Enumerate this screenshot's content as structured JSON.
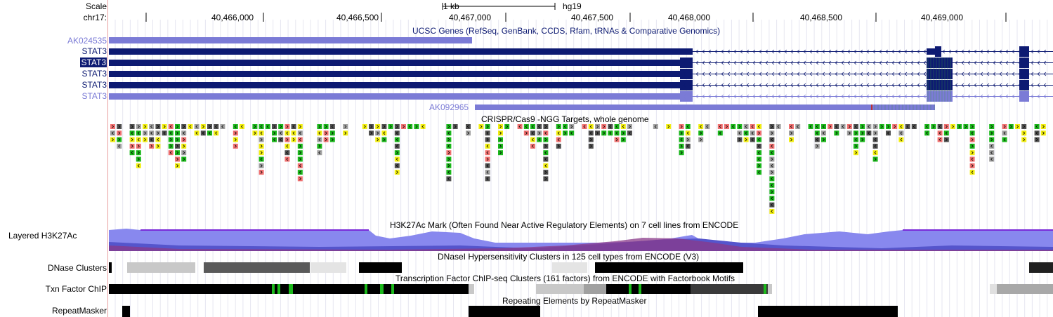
{
  "ruler": {
    "scale_label": "Scale",
    "chrom_label": "chr17:",
    "scale_bar": "1 kb",
    "assembly": "hg19",
    "ticks": [
      "40,466,000",
      "40,466,500",
      "40,467,000",
      "40,467,500",
      "40,468,000",
      "40,468,500",
      "40,469,000"
    ]
  },
  "tracks": {
    "ucsc_genes": {
      "title": "UCSC Genes (RefSeq, GenBank, CCDS, Rfam, tRNAs & Comparative Genomics)",
      "items": [
        {
          "name": "AK024535",
          "color": "#7b7bd6"
        },
        {
          "name": "STAT3",
          "color": "#0d1a72"
        },
        {
          "name": "STAT3",
          "color": "#0d1a72",
          "selected": true
        },
        {
          "name": "STAT3",
          "color": "#0d1a72"
        },
        {
          "name": "STAT3",
          "color": "#0d1a72"
        },
        {
          "name": "STAT3",
          "color": "#7b7bd6"
        }
      ],
      "extra_item": "AK092965"
    },
    "crispr": {
      "title": "CRISPR/Cas9 -NGG Targets, whole genome"
    },
    "h3k27ac": {
      "label": "Layered H3K27Ac",
      "title": "H3K27Ac Mark (Often Found Near Active Regulatory Elements) on 7 cell lines from ENCODE"
    },
    "dnase": {
      "label": "DNase Clusters",
      "title": "DNaseI Hypersensitivity Clusters in 125 cell types from ENCODE (V3)"
    },
    "txn": {
      "label": "Txn Factor ChIP",
      "title": "Transcription Factor ChIP-seq Clusters (161 factors) from ENCODE with Factorbook Motifs"
    },
    "repeat": {
      "label": "RepeatMasker",
      "title": "Repeating Elements by RepeatMasker"
    }
  },
  "colors": {
    "gene_dark": "#0d1a72",
    "gene_light": "#7b7bd6",
    "crispr_green": "#1bb81b",
    "crispr_yellow": "#f2ee10",
    "crispr_red": "#f07070",
    "crispr_dark": "#505050",
    "crispr_grey": "#a0a0a0",
    "h3k_top": "#8888ee",
    "h3k_line": "#7a2ad8"
  }
}
